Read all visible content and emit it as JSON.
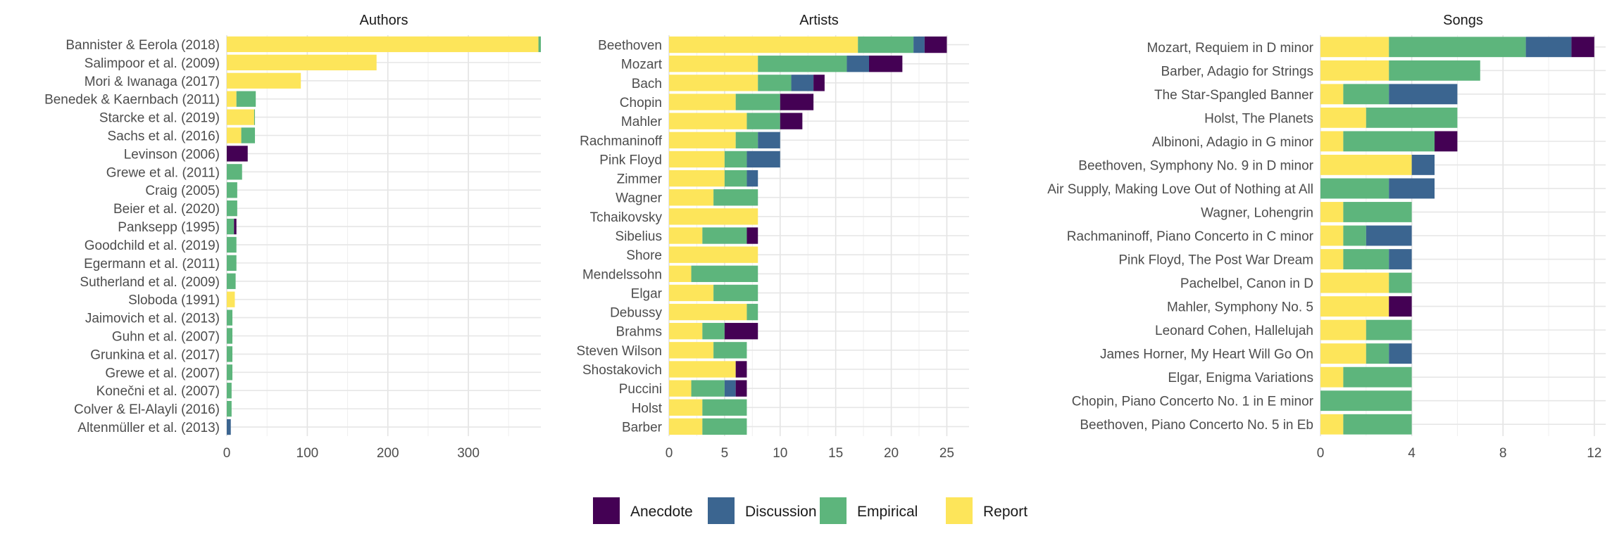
{
  "stack_order": [
    "Report",
    "Empirical",
    "Discussion",
    "Anecdote"
  ],
  "legend": {
    "entries": [
      {
        "name": "Anecdote",
        "color": "#440154"
      },
      {
        "name": "Discussion",
        "color": "#3b6590"
      },
      {
        "name": "Empirical",
        "color": "#5db57c"
      },
      {
        "name": "Report",
        "color": "#fde55a"
      }
    ]
  },
  "chart_data": [
    {
      "type": "bar",
      "orientation": "horizontal",
      "stacked": true,
      "title": "Authors",
      "xlim": [
        0,
        390
      ],
      "xticks": [
        0,
        100,
        200,
        300
      ],
      "grid": true,
      "categories": [
        "Bannister & Eerola (2018)",
        "Salimpoor et al. (2009)",
        "Mori & Iwanaga (2017)",
        "Benedek & Kaernbach (2011)",
        "Starcke et al. (2019)",
        "Sachs et al. (2016)",
        "Levinson (2006)",
        "Grewe et al. (2011)",
        "Craig (2005)",
        "Beier et al. (2020)",
        "Panksepp (1995)",
        "Goodchild et al. (2019)",
        "Egermann et al. (2011)",
        "Sutherland et al. (2009)",
        "Sloboda (1991)",
        "Jaimovich et al. (2013)",
        "Guhn et al. (2007)",
        "Grunkina et al. (2017)",
        "Grewe et al. (2007)",
        "Konečni et al. (2007)",
        "Colver & El-Alayli (2016)",
        "Altenmüller et al. (2013)"
      ],
      "series": [
        {
          "name": "Report",
          "values": [
            387,
            186,
            92,
            12,
            34,
            18,
            0,
            0,
            0,
            0,
            0,
            0,
            0,
            0,
            10,
            0,
            0,
            0,
            0,
            0,
            0,
            0
          ]
        },
        {
          "name": "Empirical",
          "values": [
            3,
            0,
            0,
            24,
            1,
            17,
            0,
            19,
            13,
            13,
            9,
            12,
            12,
            11,
            0,
            7,
            7,
            7,
            7,
            6,
            6,
            0
          ]
        },
        {
          "name": "Discussion",
          "values": [
            0,
            0,
            0,
            0,
            0,
            0,
            0,
            0,
            0,
            0,
            0,
            0,
            0,
            0,
            0,
            0,
            0,
            0,
            0,
            0,
            0,
            5
          ]
        },
        {
          "name": "Anecdote",
          "values": [
            0,
            0,
            0,
            0,
            0,
            0,
            26,
            0,
            0,
            0,
            3,
            0,
            0,
            0,
            0,
            0,
            0,
            0,
            0,
            0,
            0,
            0
          ]
        }
      ]
    },
    {
      "type": "bar",
      "orientation": "horizontal",
      "stacked": true,
      "title": "Artists",
      "xlim": [
        0,
        27
      ],
      "xticks": [
        0,
        5,
        10,
        15,
        20,
        25
      ],
      "grid": true,
      "categories": [
        "Beethoven",
        "Mozart",
        "Bach",
        "Chopin",
        "Mahler",
        "Rachmaninoff",
        "Pink Floyd",
        "Zimmer",
        "Wagner",
        "Tchaikovsky",
        "Sibelius",
        "Shore",
        "Mendelssohn",
        "Elgar",
        "Debussy",
        "Brahms",
        "Steven Wilson",
        "Shostakovich",
        "Puccini",
        "Holst",
        "Barber"
      ],
      "series": [
        {
          "name": "Report",
          "values": [
            17,
            8,
            8,
            6,
            7,
            6,
            5,
            5,
            4,
            8,
            3,
            8,
            2,
            4,
            7,
            3,
            4,
            6,
            2,
            3,
            3
          ]
        },
        {
          "name": "Empirical",
          "values": [
            5,
            8,
            3,
            4,
            3,
            2,
            2,
            2,
            4,
            0,
            4,
            0,
            6,
            4,
            1,
            2,
            3,
            0,
            3,
            4,
            4
          ]
        },
        {
          "name": "Discussion",
          "values": [
            1,
            2,
            2,
            0,
            0,
            2,
            3,
            1,
            0,
            0,
            0,
            0,
            0,
            0,
            0,
            0,
            0,
            0,
            1,
            0,
            0
          ]
        },
        {
          "name": "Anecdote",
          "values": [
            2,
            3,
            1,
            3,
            2,
            0,
            0,
            0,
            0,
            0,
            1,
            0,
            0,
            0,
            0,
            3,
            0,
            1,
            1,
            0,
            0
          ]
        }
      ]
    },
    {
      "type": "bar",
      "orientation": "horizontal",
      "stacked": true,
      "title": "Songs",
      "xlim": [
        0,
        12.5
      ],
      "xticks": [
        0,
        4,
        8,
        12
      ],
      "grid": true,
      "categories": [
        "Mozart, Requiem in D minor",
        "Barber, Adagio for Strings",
        "The Star-Spangled Banner",
        "Holst, The Planets",
        "Albinoni, Adagio in G minor",
        "Beethoven, Symphony No. 9 in D minor",
        "Air Supply, Making Love Out of Nothing at All",
        "Wagner, Lohengrin",
        "Rachmaninoff, Piano Concerto in C minor",
        "Pink Floyd, The Post War Dream",
        "Pachelbel, Canon in D",
        "Mahler, Symphony No. 5",
        "Leonard Cohen, Hallelujah",
        "James Horner, My Heart Will Go On",
        "Elgar, Enigma Variations",
        "Chopin, Piano Concerto No. 1 in E minor",
        "Beethoven, Piano Concerto No. 5 in Eb"
      ],
      "series": [
        {
          "name": "Report",
          "values": [
            3,
            3,
            1,
            2,
            1,
            4,
            0,
            1,
            1,
            1,
            3,
            3,
            2,
            2,
            1,
            0,
            1
          ]
        },
        {
          "name": "Empirical",
          "values": [
            6,
            4,
            2,
            4,
            4,
            0,
            3,
            3,
            1,
            2,
            1,
            0,
            2,
            1,
            3,
            4,
            3
          ]
        },
        {
          "name": "Discussion",
          "values": [
            2,
            0,
            3,
            0,
            0,
            1,
            2,
            0,
            2,
            1,
            0,
            0,
            0,
            1,
            0,
            0,
            0
          ]
        },
        {
          "name": "Anecdote",
          "values": [
            1,
            0,
            0,
            0,
            1,
            0,
            0,
            0,
            0,
            0,
            0,
            1,
            0,
            0,
            0,
            0,
            0
          ]
        }
      ]
    }
  ]
}
